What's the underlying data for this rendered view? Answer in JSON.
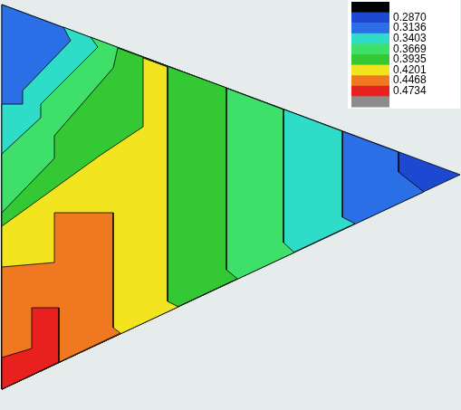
{
  "chart_data": {
    "type": "contour",
    "xlim": [
      0,
      509
    ],
    "ylim": [
      453,
      0
    ],
    "tick_labels": false,
    "grid": false,
    "colorbar": {
      "ticks": [
        {
          "value": 0.287,
          "label": "0.2870"
        },
        {
          "value": 0.3136,
          "label": "0.3136"
        },
        {
          "value": 0.3403,
          "label": "0.3403"
        },
        {
          "value": 0.3669,
          "label": "0.3669"
        },
        {
          "value": 0.3935,
          "label": "0.3935"
        },
        {
          "value": 0.4201,
          "label": "0.4201"
        },
        {
          "value": 0.4468,
          "label": "0.4468"
        },
        {
          "value": 0.4734,
          "label": "0.4734"
        }
      ],
      "colors": [
        "#000000",
        "#1c48d2",
        "#2a6fe6",
        "#2edcc8",
        "#3ee06a",
        "#34c834",
        "#f2e41e",
        "#f07820",
        "#e8201e",
        "#8c8c8c"
      ]
    },
    "regions": [
      {
        "min": 0.287,
        "polygon": [
          [
            2,
            5
          ],
          [
            508,
            193
          ],
          [
            2,
            430
          ]
        ]
      },
      {
        "min": 0.3136,
        "polygon": [
          [
            2,
            5
          ],
          [
            440,
            168
          ],
          [
            440,
            190
          ],
          [
            468,
            212
          ],
          [
            2,
            430
          ]
        ]
      },
      {
        "min": 0.3403,
        "polygon": [
          [
            2,
            115
          ],
          [
            25,
            115
          ],
          [
            25,
            100
          ],
          [
            78,
            45
          ],
          [
            70,
            30
          ],
          [
            378,
            145
          ],
          [
            378,
            240
          ],
          [
            392,
            247
          ],
          [
            2,
            430
          ]
        ]
      },
      {
        "min": 0.3669,
        "polygon": [
          [
            2,
            170
          ],
          [
            45,
            130
          ],
          [
            45,
            115
          ],
          [
            108,
            52
          ],
          [
            100,
            41
          ],
          [
            313,
            121
          ],
          [
            313,
            268
          ],
          [
            325,
            279
          ],
          [
            2,
            430
          ]
        ]
      },
      {
        "min": 0.3935,
        "polygon": [
          [
            2,
            235
          ],
          [
            60,
            175
          ],
          [
            60,
            150
          ],
          [
            125,
            75
          ],
          [
            130,
            53
          ],
          [
            250,
            97
          ],
          [
            250,
            298
          ],
          [
            262,
            308
          ],
          [
            2,
            430
          ]
        ]
      },
      {
        "min": 0.4201,
        "polygon": [
          [
            2,
            250
          ],
          [
            110,
            172
          ],
          [
            158,
            140
          ],
          [
            158,
            64
          ],
          [
            185,
            74
          ],
          [
            185,
            333
          ],
          [
            197,
            339
          ],
          [
            2,
            430
          ]
        ]
      },
      {
        "min": 0.4468,
        "polygon": [
          [
            2,
            295
          ],
          [
            60,
            290
          ],
          [
            60,
            235
          ],
          [
            125,
            235
          ],
          [
            125,
            362
          ],
          [
            133,
            368
          ],
          [
            2,
            430
          ]
        ]
      },
      {
        "min": 0.4734,
        "polygon": [
          [
            2,
            395
          ],
          [
            35,
            385
          ],
          [
            35,
            340
          ],
          [
            65,
            340
          ],
          [
            65,
            400
          ],
          [
            2,
            430
          ]
        ]
      }
    ]
  }
}
